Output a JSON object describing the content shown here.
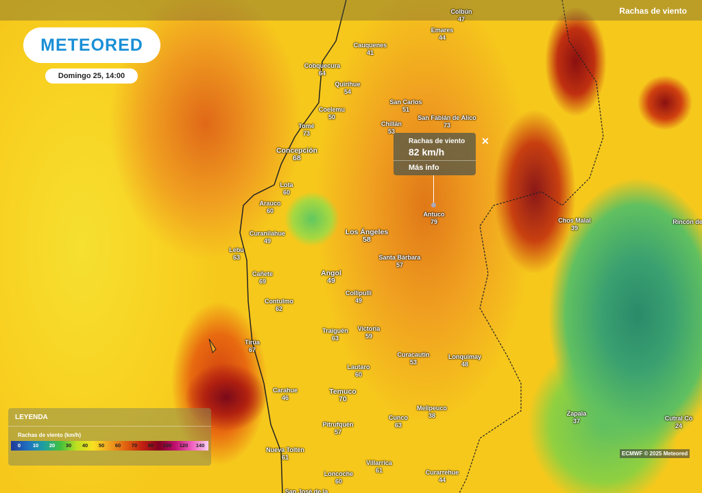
{
  "header": {
    "logo": "METEORED",
    "date": "Domingo 25, 14:00",
    "layer": "Rachas de viento"
  },
  "popup": {
    "title": "Rachas de viento",
    "value": "82 km/h",
    "link": "Más info"
  },
  "cities": [
    {
      "name": "Colbún",
      "value": 47
    },
    {
      "name": "Emares",
      "value": 44
    },
    {
      "name": "Cauquenes",
      "value": 41
    },
    {
      "name": "Cobquecura",
      "value": 64
    },
    {
      "name": "Quirihue",
      "value": 54
    },
    {
      "name": "San Carlos",
      "value": 51
    },
    {
      "name": "Coelemu",
      "value": 50
    },
    {
      "name": "San Fabián de Alico",
      "value": 73
    },
    {
      "name": "Chillán",
      "value": 53
    },
    {
      "name": "Tomé",
      "value": 73
    },
    {
      "name": "Concepción",
      "value": 68
    },
    {
      "name": "Lota",
      "value": 60
    },
    {
      "name": "Arauco",
      "value": 60
    },
    {
      "name": "Antuco",
      "value": 79
    },
    {
      "name": "Chos Malal",
      "value": 39
    },
    {
      "name": "Rincón de"
    },
    {
      "name": "Curanilahue",
      "value": 49
    },
    {
      "name": "Los Ángeles",
      "value": 58
    },
    {
      "name": "Lebu",
      "value": 63
    },
    {
      "name": "Santa Bárbara",
      "value": 57
    },
    {
      "name": "Cañete",
      "value": 69
    },
    {
      "name": "Angol",
      "value": 49
    },
    {
      "name": "Contulmo",
      "value": 62
    },
    {
      "name": "Collipulli",
      "value": 49
    },
    {
      "name": "Traiguén",
      "value": 63
    },
    {
      "name": "Victoria",
      "value": 59
    },
    {
      "name": "Tirúa",
      "value": 67
    },
    {
      "name": "Curacautín",
      "value": 53
    },
    {
      "name": "Lonquimay",
      "value": 48
    },
    {
      "name": "Lautaro",
      "value": 60
    },
    {
      "name": "Carahue",
      "value": 46
    },
    {
      "name": "Temuco",
      "value": 70
    },
    {
      "name": "Melipeuco",
      "value": 38
    },
    {
      "name": "Zapala",
      "value": 37
    },
    {
      "name": "Cutral Có",
      "value": 24
    },
    {
      "name": "Cunco",
      "value": 63
    },
    {
      "name": "Pitrufquén",
      "value": 57
    },
    {
      "name": "Nueva Toltén",
      "value": 61
    },
    {
      "name": "Villarrica",
      "value": 61
    },
    {
      "name": "Loncoche",
      "value": 60
    },
    {
      "name": "Curarrehue",
      "value": 44
    },
    {
      "name": "San José de la"
    }
  ],
  "legend": {
    "title": "LEYENDA",
    "subtitle": "Rachas de viento (km/h)",
    "ticks": [
      0,
      10,
      20,
      30,
      40,
      50,
      60,
      70,
      80,
      100,
      120,
      140
    ]
  },
  "attribution": "ECMWF © 2025 Meteored"
}
